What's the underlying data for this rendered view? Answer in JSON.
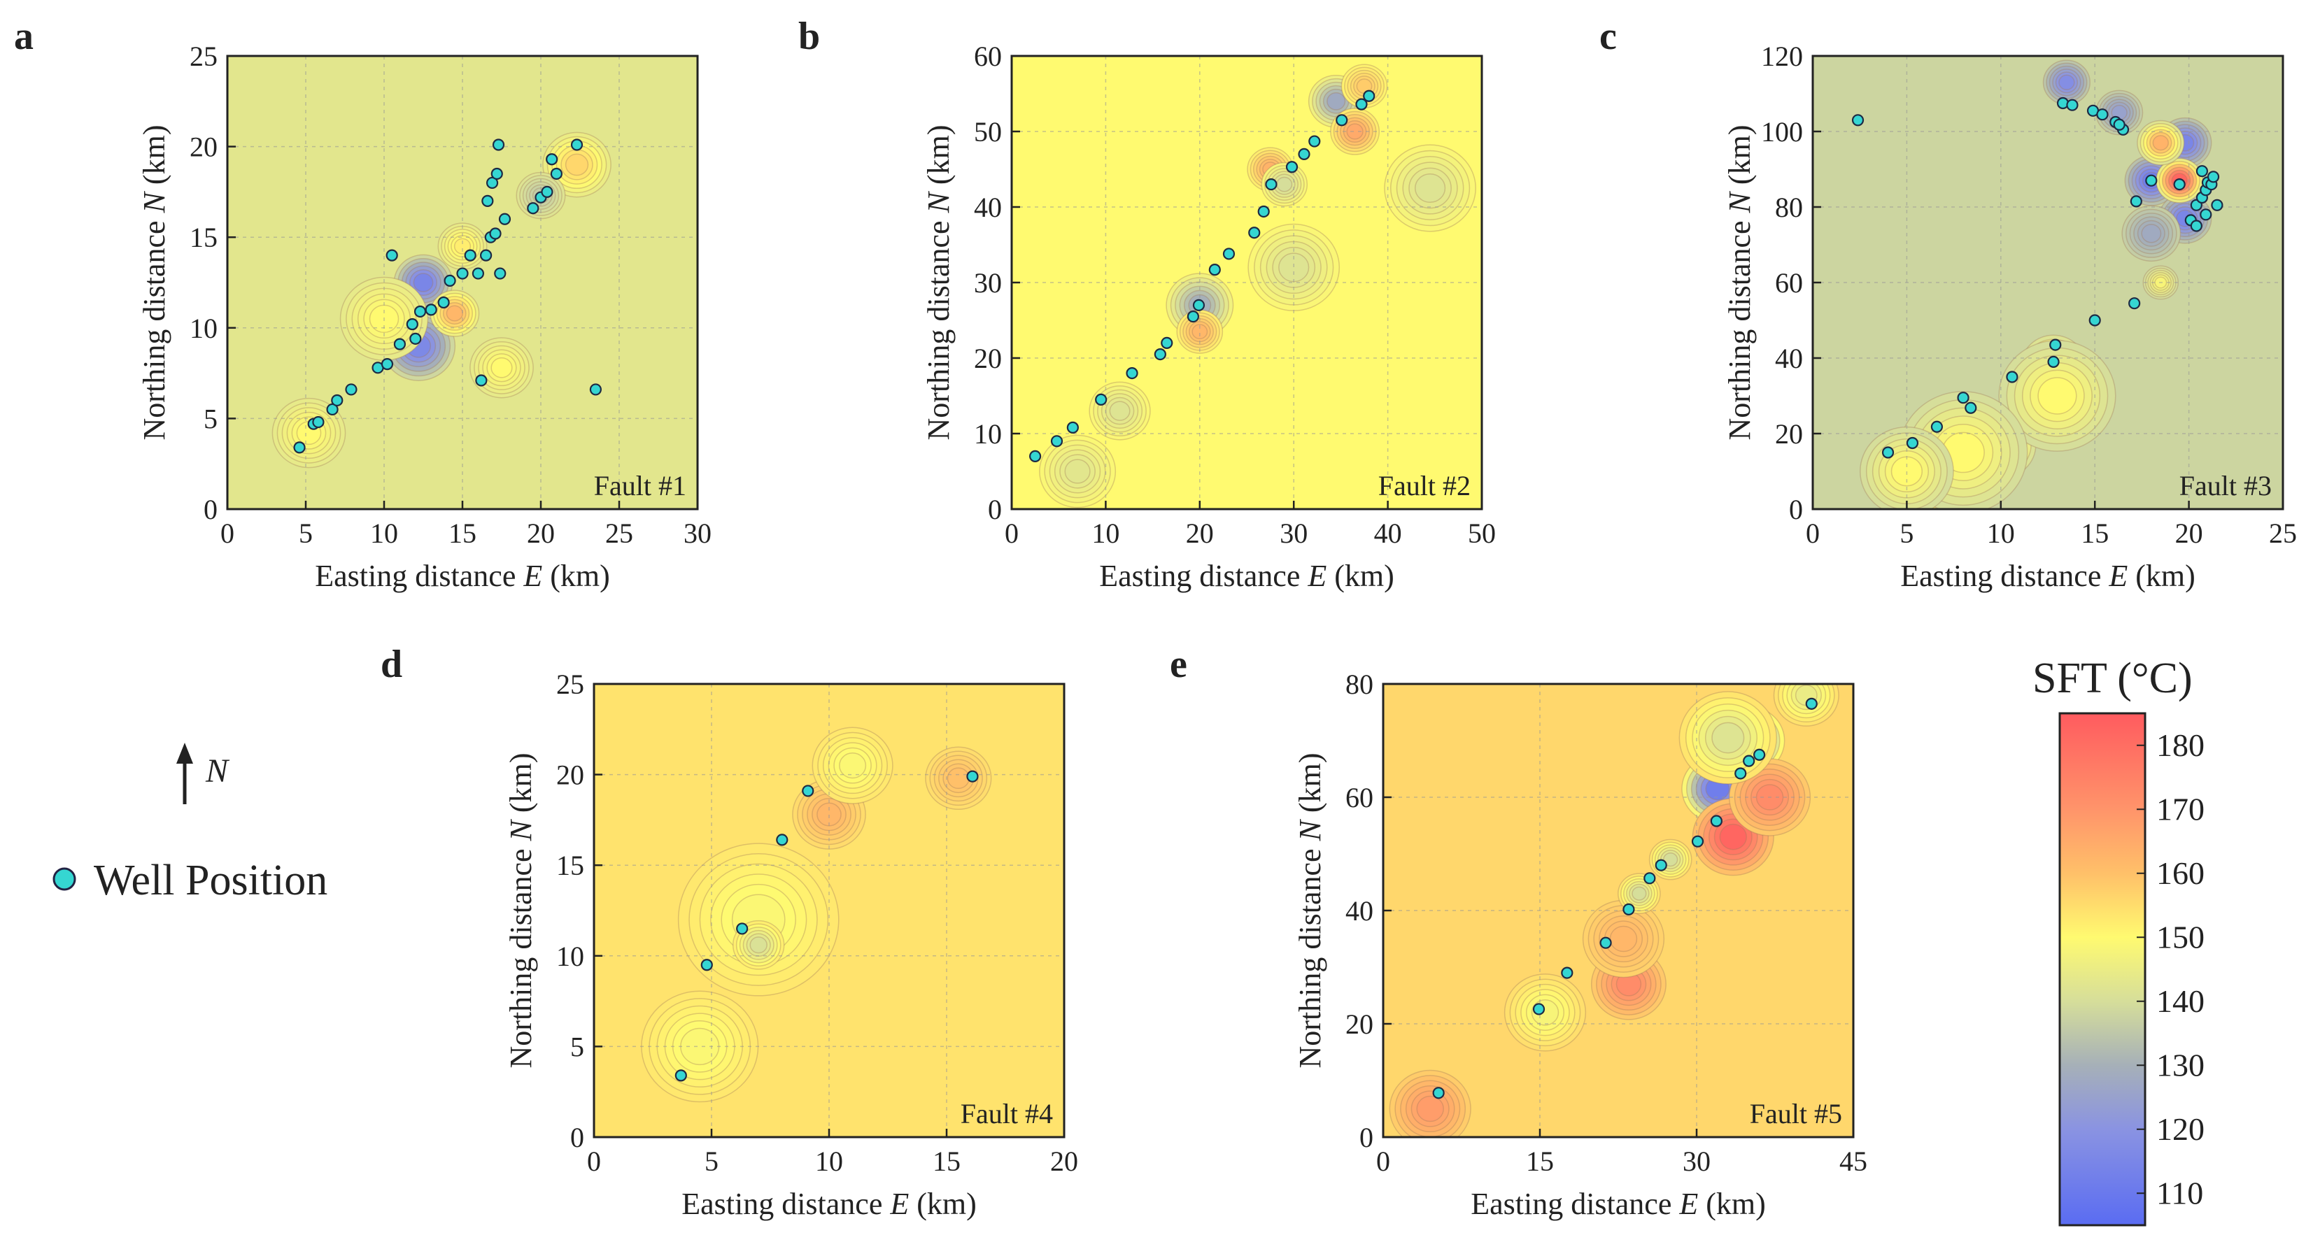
{
  "legend": {
    "north_label": "N",
    "well_label": "Well Position",
    "well_color": "#35d6d2"
  },
  "colorbar": {
    "title": "SFT (°C)",
    "ticks": [
      "110",
      "120",
      "130",
      "140",
      "150",
      "160",
      "170",
      "180"
    ],
    "range": [
      105,
      185
    ],
    "color_stops": [
      {
        "v": 105,
        "c": "#5a6cf2"
      },
      {
        "v": 120,
        "c": "#8a93e2"
      },
      {
        "v": 130,
        "c": "#a6b0b8"
      },
      {
        "v": 140,
        "c": "#d6de9a"
      },
      {
        "v": 150,
        "c": "#fffa70"
      },
      {
        "v": 160,
        "c": "#ffc069"
      },
      {
        "v": 170,
        "c": "#ff946a"
      },
      {
        "v": 185,
        "c": "#ff5b5f"
      }
    ]
  },
  "chart_data": [
    {
      "type": "heatmap",
      "panel": "a",
      "fault_label": "Fault #1",
      "xlabel": "Easting distance",
      "xvar": "E",
      "xunit": "(km)",
      "ylabel": "Northing distance",
      "yvar": "N",
      "yunit": "(km)",
      "xlim": [
        0,
        30
      ],
      "ylim": [
        0,
        25
      ],
      "xticks": [
        "0",
        "5",
        "10",
        "15",
        "20",
        "25",
        "30"
      ],
      "yticks": [
        "0",
        "5",
        "10",
        "15",
        "20",
        "25"
      ],
      "background_sft": 143,
      "wells": [
        [
          4.6,
          3.4
        ],
        [
          5.5,
          4.7
        ],
        [
          5.8,
          4.8
        ],
        [
          6.7,
          5.5
        ],
        [
          7.0,
          6.0
        ],
        [
          7.9,
          6.6
        ],
        [
          9.6,
          7.8
        ],
        [
          10.2,
          8.0
        ],
        [
          10.5,
          14.0
        ],
        [
          11.0,
          9.1
        ],
        [
          12.0,
          9.4
        ],
        [
          11.8,
          10.2
        ],
        [
          12.3,
          10.9
        ],
        [
          13.0,
          11.0
        ],
        [
          13.8,
          11.4
        ],
        [
          14.2,
          12.6
        ],
        [
          15.0,
          13.0
        ],
        [
          15.5,
          14.0
        ],
        [
          16.0,
          13.0
        ],
        [
          16.2,
          7.1
        ],
        [
          16.5,
          14.0
        ],
        [
          16.8,
          15.0
        ],
        [
          17.1,
          15.2
        ],
        [
          17.4,
          13.0
        ],
        [
          17.7,
          16.0
        ],
        [
          16.6,
          17.0
        ],
        [
          16.9,
          18.0
        ],
        [
          17.2,
          18.5
        ],
        [
          17.3,
          20.1
        ],
        [
          19.5,
          16.6
        ],
        [
          20.0,
          17.2
        ],
        [
          20.4,
          17.5
        ],
        [
          20.7,
          19.3
        ],
        [
          21.0,
          18.5
        ],
        [
          22.3,
          20.1
        ],
        [
          23.5,
          6.6
        ]
      ],
      "anomalies": [
        {
          "x": 12.5,
          "y": 12.5,
          "sft": 115,
          "r": 1.2
        },
        {
          "x": 12.2,
          "y": 9.0,
          "sft": 116,
          "r": 1.5
        },
        {
          "x": 14.5,
          "y": 10.8,
          "sft": 162,
          "r": 1.0
        },
        {
          "x": 10.0,
          "y": 10.5,
          "sft": 150,
          "r": 1.8
        },
        {
          "x": 22.3,
          "y": 19.0,
          "sft": 156,
          "r": 1.4
        },
        {
          "x": 5.2,
          "y": 4.2,
          "sft": 150,
          "r": 1.5
        },
        {
          "x": 17.5,
          "y": 7.8,
          "sft": 150,
          "r": 1.3
        },
        {
          "x": 20.0,
          "y": 17.3,
          "sft": 136,
          "r": 1.0
        },
        {
          "x": 15.0,
          "y": 14.5,
          "sft": 152,
          "r": 1.0
        }
      ]
    },
    {
      "type": "heatmap",
      "panel": "b",
      "fault_label": "Fault #2",
      "xlabel": "Easting distance",
      "xvar": "E",
      "xunit": "(km)",
      "ylabel": "Northing distance",
      "yvar": "N",
      "yunit": "(km)",
      "xlim": [
        0,
        50
      ],
      "ylim": [
        0,
        60
      ],
      "xticks": [
        "0",
        "10",
        "20",
        "30",
        "40",
        "50"
      ],
      "yticks": [
        "0",
        "10",
        "20",
        "30",
        "40",
        "50",
        "60"
      ],
      "background_sft": 150,
      "wells": [
        [
          2.5,
          7.0
        ],
        [
          4.8,
          9.0
        ],
        [
          6.5,
          10.8
        ],
        [
          9.5,
          14.5
        ],
        [
          12.8,
          18.0
        ],
        [
          15.8,
          20.5
        ],
        [
          16.5,
          22.0
        ],
        [
          19.3,
          25.5
        ],
        [
          19.9,
          27.0
        ],
        [
          21.6,
          31.7
        ],
        [
          23.1,
          33.8
        ],
        [
          25.8,
          36.6
        ],
        [
          26.8,
          39.4
        ],
        [
          27.6,
          43.0
        ],
        [
          29.8,
          45.3
        ],
        [
          31.1,
          47.0
        ],
        [
          32.2,
          48.7
        ],
        [
          35.1,
          51.5
        ],
        [
          37.2,
          53.6
        ],
        [
          38.0,
          54.7
        ]
      ],
      "anomalies": [
        {
          "x": 20.0,
          "y": 27.0,
          "sft": 130,
          "r": 2.2
        },
        {
          "x": 20.0,
          "y": 23.5,
          "sft": 162,
          "r": 1.5
        },
        {
          "x": 27.5,
          "y": 45.0,
          "sft": 163,
          "r": 1.5
        },
        {
          "x": 34.5,
          "y": 54.0,
          "sft": 128,
          "r": 1.8
        },
        {
          "x": 36.5,
          "y": 50.0,
          "sft": 165,
          "r": 1.6
        },
        {
          "x": 37.5,
          "y": 56.0,
          "sft": 158,
          "r": 1.5
        },
        {
          "x": 44.5,
          "y": 42.5,
          "sft": 142,
          "r": 3.0
        },
        {
          "x": 30.0,
          "y": 32.0,
          "sft": 142,
          "r": 3.0
        },
        {
          "x": 7.0,
          "y": 5.0,
          "sft": 143,
          "r": 2.5
        },
        {
          "x": 11.5,
          "y": 13.0,
          "sft": 142,
          "r": 2.0
        },
        {
          "x": 29.0,
          "y": 43.0,
          "sft": 140,
          "r": 1.5
        }
      ]
    },
    {
      "type": "heatmap",
      "panel": "c",
      "fault_label": "Fault #3",
      "xlabel": "Easting distance",
      "xvar": "E",
      "xunit": "(km)",
      "ylabel": "Northing distance",
      "yvar": "N",
      "yunit": "(km)",
      "xlim": [
        0,
        25
      ],
      "ylim": [
        0,
        120
      ],
      "xticks": [
        "0",
        "5",
        "10",
        "15",
        "20",
        "25"
      ],
      "yticks": [
        "0",
        "20",
        "40",
        "60",
        "80",
        "100",
        "120"
      ],
      "background_sft": 138,
      "wells": [
        [
          2.4,
          103.0
        ],
        [
          4.0,
          15.0
        ],
        [
          5.3,
          17.5
        ],
        [
          6.6,
          21.8
        ],
        [
          8.0,
          29.5
        ],
        [
          8.4,
          26.8
        ],
        [
          10.6,
          35.0
        ],
        [
          12.8,
          39.0
        ],
        [
          12.9,
          43.5
        ],
        [
          13.3,
          107.5
        ],
        [
          13.8,
          107.0
        ],
        [
          14.9,
          105.5
        ],
        [
          15.4,
          104.5
        ],
        [
          15.0,
          50.0
        ],
        [
          16.1,
          102.5
        ],
        [
          16.5,
          100.5
        ],
        [
          16.3,
          101.8
        ],
        [
          17.1,
          54.5
        ],
        [
          17.2,
          81.5
        ],
        [
          18.0,
          87.0
        ],
        [
          19.5,
          86.0
        ],
        [
          20.1,
          76.5
        ],
        [
          20.4,
          75.0
        ],
        [
          20.4,
          80.5
        ],
        [
          20.7,
          82.5
        ],
        [
          20.9,
          84.5
        ],
        [
          21.0,
          86.5
        ],
        [
          20.7,
          89.5
        ],
        [
          21.2,
          86.0
        ],
        [
          21.3,
          88.0
        ],
        [
          20.9,
          78.0
        ],
        [
          21.5,
          80.5
        ]
      ],
      "anomalies": [
        {
          "x": 18.0,
          "y": 87.0,
          "sft": 112,
          "r": 0.9
        },
        {
          "x": 19.8,
          "y": 97.0,
          "sft": 115,
          "r": 0.9
        },
        {
          "x": 19.8,
          "y": 77.0,
          "sft": 115,
          "r": 0.9
        },
        {
          "x": 19.5,
          "y": 87.0,
          "sft": 182,
          "r": 0.8
        },
        {
          "x": 18.5,
          "y": 97.0,
          "sft": 163,
          "r": 0.8
        },
        {
          "x": 18.0,
          "y": 73.0,
          "sft": 128,
          "r": 1.0
        },
        {
          "x": 13.5,
          "y": 113.0,
          "sft": 118,
          "r": 0.8
        },
        {
          "x": 16.3,
          "y": 105.0,
          "sft": 125,
          "r": 0.8
        },
        {
          "x": 6.2,
          "y": 6.0,
          "sft": 165,
          "r": 1.0
        },
        {
          "x": 12.8,
          "y": 38.0,
          "sft": 160,
          "r": 1.1
        },
        {
          "x": 10.0,
          "y": 17.0,
          "sft": 158,
          "r": 1.2
        },
        {
          "x": 13.0,
          "y": 30.0,
          "sft": 150,
          "r": 2.0
        },
        {
          "x": 8.0,
          "y": 15.0,
          "sft": 150,
          "r": 2.2
        },
        {
          "x": 5.0,
          "y": 10.0,
          "sft": 150,
          "r": 1.6
        },
        {
          "x": 18.5,
          "y": 60.0,
          "sft": 148,
          "r": 0.6
        }
      ]
    },
    {
      "type": "heatmap",
      "panel": "d",
      "fault_label": "Fault #4",
      "xlabel": "Easting distance",
      "xvar": "E",
      "xunit": "(km)",
      "ylabel": "Northing distance",
      "yvar": "N",
      "yunit": "(km)",
      "xlim": [
        0,
        20
      ],
      "ylim": [
        0,
        25
      ],
      "xticks": [
        "0",
        "5",
        "10",
        "15",
        "20"
      ],
      "yticks": [
        "0",
        "5",
        "10",
        "15",
        "20",
        "25"
      ],
      "background_sft": 154,
      "wells": [
        [
          3.7,
          3.4
        ],
        [
          4.8,
          9.5
        ],
        [
          6.3,
          11.5
        ],
        [
          8.0,
          16.4
        ],
        [
          9.1,
          19.1
        ],
        [
          16.1,
          19.9
        ]
      ],
      "anomalies": [
        {
          "x": 7.0,
          "y": 12.0,
          "sft": 149,
          "r": 2.2
        },
        {
          "x": 7.0,
          "y": 10.6,
          "sft": 141,
          "r": 0.7
        },
        {
          "x": 4.5,
          "y": 5.0,
          "sft": 149,
          "r": 1.6
        },
        {
          "x": 10.0,
          "y": 17.8,
          "sft": 162,
          "r": 1.0
        },
        {
          "x": 15.5,
          "y": 19.8,
          "sft": 160,
          "r": 0.9
        },
        {
          "x": 11.0,
          "y": 20.5,
          "sft": 149,
          "r": 1.1
        }
      ]
    },
    {
      "type": "heatmap",
      "panel": "e",
      "fault_label": "Fault #5",
      "xlabel": "Easting distance",
      "xvar": "E",
      "xunit": "(km)",
      "ylabel": "Northing distance",
      "yvar": "N",
      "yunit": "(km)",
      "xlim": [
        0,
        45
      ],
      "ylim": [
        0,
        80
      ],
      "xticks": [
        "0",
        "15",
        "30",
        "45"
      ],
      "yticks": [
        "0",
        "20",
        "40",
        "60",
        "80"
      ],
      "background_sft": 156,
      "wells": [
        [
          5.3,
          7.8
        ],
        [
          14.9,
          22.6
        ],
        [
          17.6,
          29.0
        ],
        [
          21.3,
          34.3
        ],
        [
          23.5,
          40.2
        ],
        [
          25.5,
          45.7
        ],
        [
          26.6,
          48.0
        ],
        [
          30.1,
          52.2
        ],
        [
          31.9,
          55.8
        ],
        [
          34.2,
          64.2
        ],
        [
          35.0,
          66.4
        ],
        [
          36.0,
          67.5
        ],
        [
          41.0,
          76.5
        ]
      ],
      "anomalies": [
        {
          "x": 32.0,
          "y": 61.5,
          "sft": 112,
          "r": 2.2
        },
        {
          "x": 35.0,
          "y": 70.0,
          "sft": 118,
          "r": 2.2
        },
        {
          "x": 33.5,
          "y": 53.0,
          "sft": 182,
          "r": 2.5
        },
        {
          "x": 37.0,
          "y": 60.0,
          "sft": 172,
          "r": 2.5
        },
        {
          "x": 23.5,
          "y": 27.0,
          "sft": 172,
          "r": 2.3
        },
        {
          "x": 23.0,
          "y": 35.0,
          "sft": 162,
          "r": 2.5
        },
        {
          "x": 4.5,
          "y": 5.0,
          "sft": 168,
          "r": 2.5
        },
        {
          "x": 15.5,
          "y": 22.0,
          "sft": 148,
          "r": 2.5
        },
        {
          "x": 24.5,
          "y": 43.0,
          "sft": 140,
          "r": 1.3
        },
        {
          "x": 27.5,
          "y": 49.0,
          "sft": 140,
          "r": 1.3
        },
        {
          "x": 40.5,
          "y": 78.0,
          "sft": 145,
          "r": 2.0
        },
        {
          "x": 33.0,
          "y": 70.5,
          "sft": 142,
          "r": 3.0
        }
      ]
    }
  ]
}
